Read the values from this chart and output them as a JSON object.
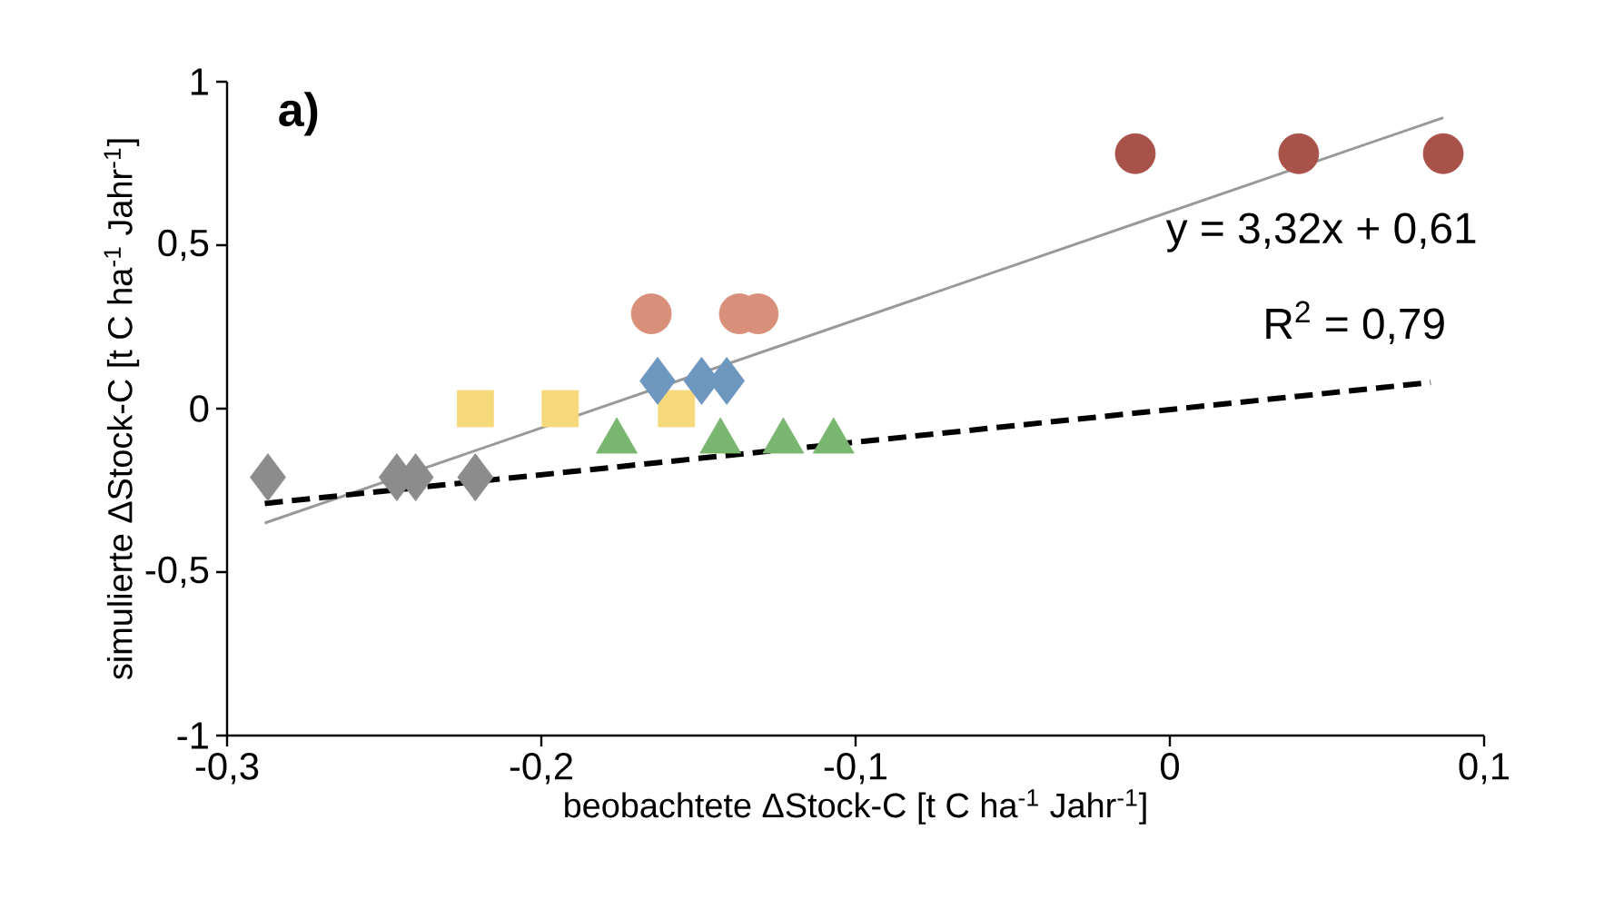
{
  "chart_data": {
    "type": "scatter",
    "xlabel": "beobachtete ΔStock-C [t C ha$^{-1}$ Jahr$^{-1}$]",
    "ylabel": "simulierte ΔStock-C [t C ha$^{-1}$ Jahr$^{-1}$]",
    "annotations": [
      "a)",
      "y = 3,32x + 0,61",
      "R$^{2}$ = 0,79"
    ],
    "xlim": [
      -0.3,
      0.1
    ],
    "ylim": [
      -1,
      1
    ],
    "xticks": [
      {
        "value": -0.3,
        "label": "-0,3"
      },
      {
        "value": -0.2,
        "label": "-0,2"
      },
      {
        "value": -0.1,
        "label": "-0,1"
      },
      0,
      {
        "value": 0.1,
        "label": "0,1"
      }
    ],
    "yticks": [
      -1,
      {
        "value": -0.5,
        "label": "-0,5"
      },
      0,
      {
        "value": 0.5,
        "label": "0,5"
      },
      1
    ],
    "series": [
      {
        "type": "line",
        "color": "#999999",
        "line_style": "solid",
        "x": [
          -0.288,
          0.087
        ],
        "values": [
          -0.35,
          0.89
        ]
      },
      {
        "type": "line",
        "color": "#000000",
        "line_style": "dashed",
        "x": [
          -0.288,
          0.083
        ],
        "values": [
          -0.29,
          0.08
        ]
      },
      {
        "type": "scatter",
        "color": "#8c8c8c",
        "marker": "diamond",
        "x": [
          -0.287,
          -0.246,
          -0.24,
          -0.221
        ],
        "values": [
          -0.21,
          -0.21,
          -0.21,
          -0.21
        ]
      },
      {
        "type": "scatter",
        "color": "#f5d97a",
        "marker": "square",
        "x": [
          -0.221,
          -0.194,
          -0.157
        ],
        "values": [
          0,
          0,
          0
        ]
      },
      {
        "type": "scatter",
        "color": "#6e97c0",
        "marker": "diamond",
        "x": [
          -0.163,
          -0.149,
          -0.141
        ],
        "values": [
          0.085,
          0.085,
          0.085
        ]
      },
      {
        "type": "scatter",
        "color": "#d9907a",
        "marker": "circle",
        "x": [
          -0.165,
          -0.137,
          -0.131
        ],
        "values": [
          0.29,
          0.29,
          0.29
        ]
      },
      {
        "type": "scatter",
        "color": "#79b66f",
        "marker": "triangle",
        "x": [
          -0.176,
          -0.143,
          -0.123,
          -0.107
        ],
        "values": [
          -0.1,
          -0.1,
          -0.1,
          -0.1
        ]
      },
      {
        "type": "scatter",
        "color": "#a8524a",
        "marker": "circle",
        "x": [
          -0.011,
          0.041,
          0.087
        ],
        "values": [
          0.78,
          0.78,
          0.78
        ]
      }
    ]
  }
}
